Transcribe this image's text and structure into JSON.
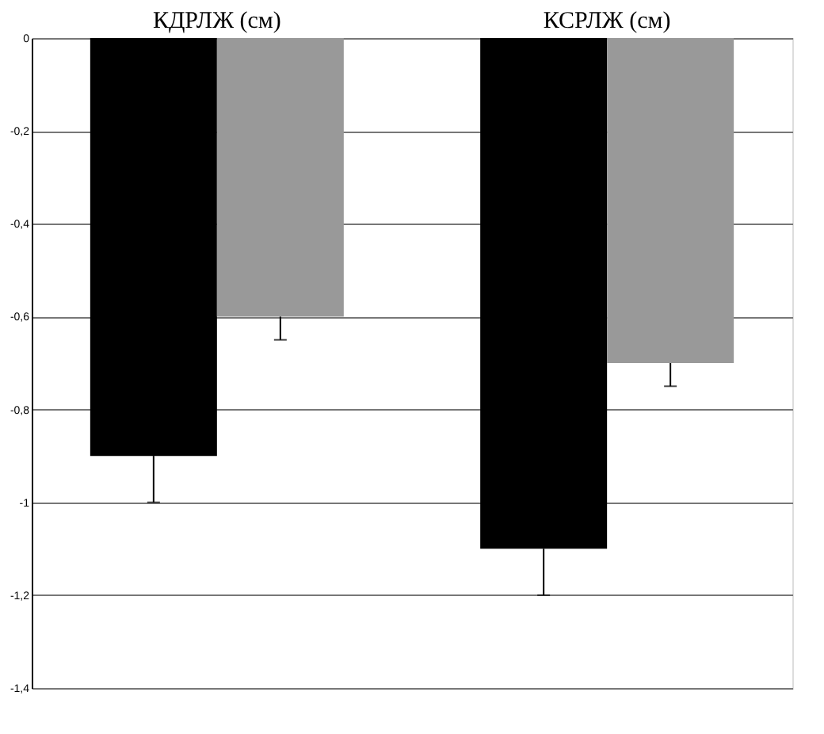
{
  "chart_data": {
    "type": "bar",
    "categories": [
      "КДРЛЖ (см)",
      "КСРЛЖ (см)"
    ],
    "series": [
      {
        "color": "#000000",
        "values": [
          -0.9,
          -1.1
        ],
        "errors": [
          [
            -1.0,
            -0.9
          ],
          [
            -1.2,
            -1.1
          ]
        ]
      },
      {
        "color": "#999999",
        "values": [
          -0.6,
          -0.7
        ],
        "errors": [
          [
            -0.65,
            -0.6
          ],
          [
            -0.75,
            -0.7
          ]
        ]
      }
    ],
    "ylim": [
      -1.4,
      0
    ],
    "yticks": [
      0,
      {
        "value": -0.2,
        "label": "-0,2"
      },
      {
        "value": -0.4,
        "label": "-0,4"
      },
      {
        "value": -0.6,
        "label": "-0,6"
      },
      {
        "value": -0.8,
        "label": "-0,8"
      },
      {
        "value": -1,
        "label": "-1"
      },
      {
        "value": -1.2,
        "label": "-1,2"
      },
      {
        "value": -1.4,
        "label": "-1,4"
      }
    ],
    "grid": "y"
  }
}
